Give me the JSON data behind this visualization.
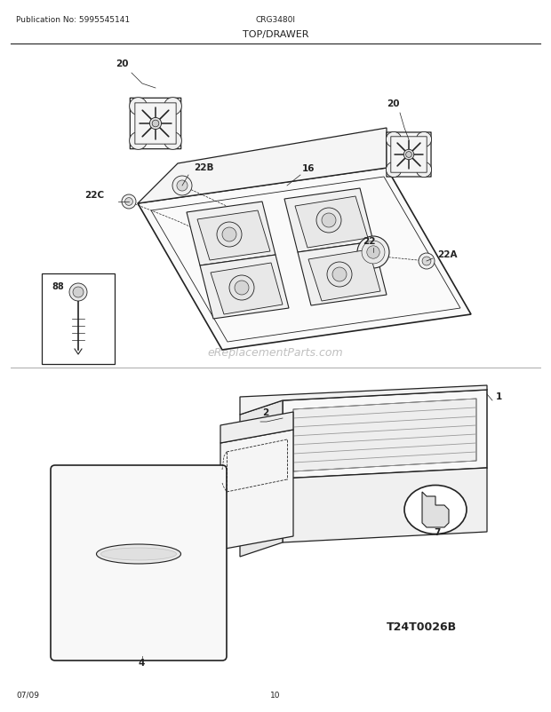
{
  "title": "TOP/DRAWER",
  "pub_no": "Publication No: 5995545141",
  "model": "CRG3480I",
  "date": "07/09",
  "page": "10",
  "watermark": "eReplacementParts.com",
  "diagram_id": "T24T0026B",
  "bg_color": "#ffffff",
  "lc": "#222222",
  "lc_light": "#888888"
}
